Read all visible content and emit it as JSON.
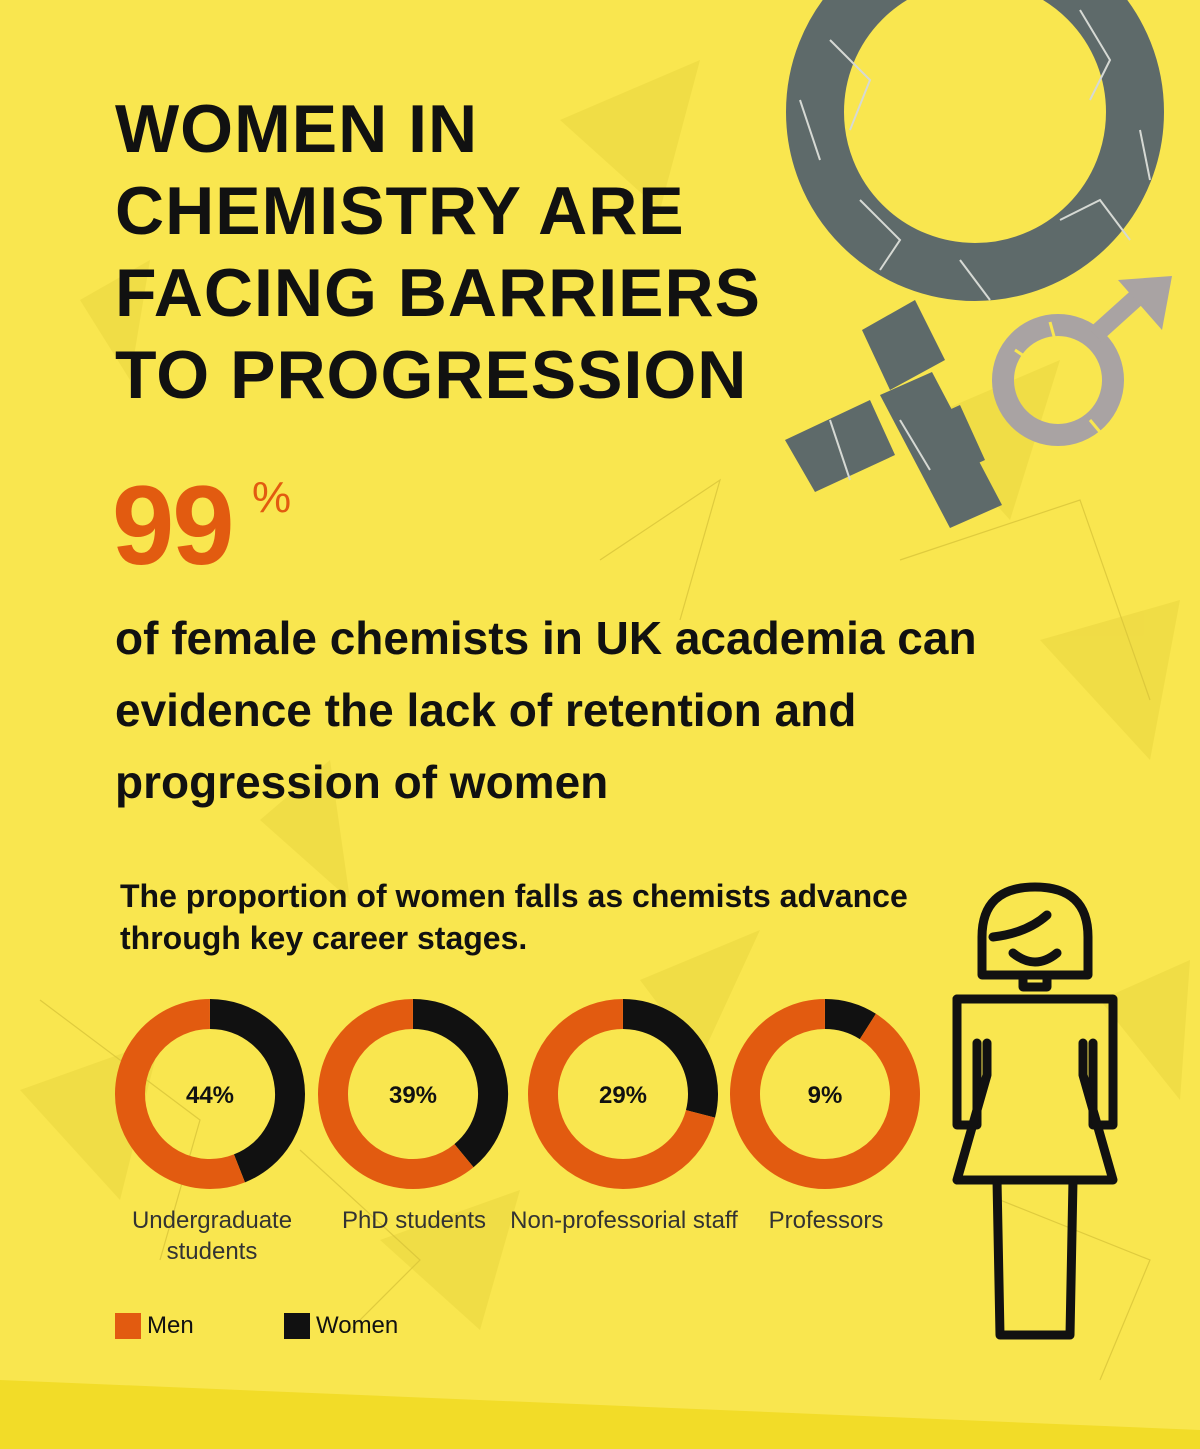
{
  "title": "WOMEN IN\nCHEMISTRY ARE\nFACING BARRIERS\nTO PROGRESSION",
  "highlight_stat": {
    "value": "99",
    "unit": "%",
    "description": "of female chemists in UK academia can evidence the lack of retention and progression of women"
  },
  "chart_subtitle": "The proportion of women falls as chemists advance through key career stages.",
  "icons": [
    "broken-female-symbol-icon",
    "broken-male-symbol-icon",
    "woman-icon"
  ],
  "colors": {
    "background": "#f9e64f",
    "men": "#e25b10",
    "women": "#111111",
    "symbol_grey": "#5e6a6a",
    "symbol_light": "#a9a3a3"
  },
  "chart_data": {
    "type": "pie",
    "subtype": "donut",
    "title": "",
    "categories": [
      "Undergraduate students",
      "PhD students",
      "Non-professorial staff",
      "Professors"
    ],
    "series": [
      {
        "name": "Men",
        "values": [
          56,
          61,
          71,
          91
        ]
      },
      {
        "name": "Women",
        "values": [
          44,
          39,
          29,
          9
        ]
      }
    ],
    "center_labels": [
      "44%",
      "39%",
      "29%",
      "9%"
    ],
    "legend": {
      "entries": [
        "Men",
        "Women"
      ],
      "position": "bottom-left"
    }
  }
}
